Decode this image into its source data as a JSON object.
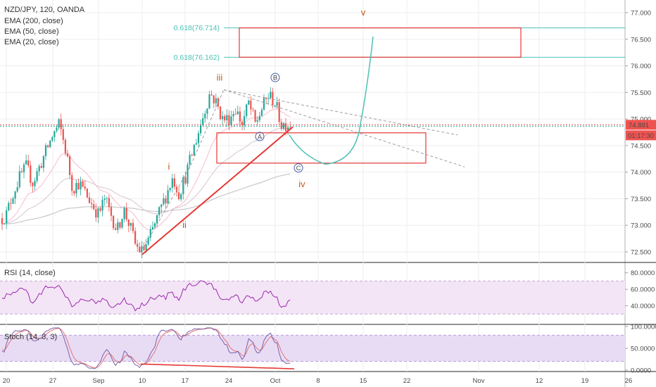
{
  "chart_data": {
    "type": "candlestick",
    "title": "NZD/JPY, 120, OANDA",
    "indicators": [
      "EMA (200, close)",
      "EMA (50, close)",
      "EMA (20, close)"
    ],
    "x_labels": [
      "20",
      "27",
      "Sep",
      "10",
      "17",
      "24",
      "Oct",
      "8",
      "15",
      "22",
      "Nov",
      "12",
      "19",
      "26"
    ],
    "price_ticks": [
      "77.000",
      "76.500",
      "76.000",
      "75.500",
      "75.000",
      "74.500",
      "74.000",
      "73.500",
      "73.000",
      "72.500"
    ],
    "price_range": [
      72.3,
      77.2
    ],
    "last_price": "74.891",
    "countdown": "01:17:30",
    "fib_levels": [
      {
        "label": "0.618(76.714)",
        "value": 76.714
      },
      {
        "label": "0.618(76.162)",
        "value": 76.162
      }
    ],
    "wave_labels": [
      "i",
      "ii",
      "iii",
      "iv",
      "v",
      "A",
      "B",
      "C"
    ],
    "series_path": [
      {
        "date": "Aug 19",
        "value": 73.1
      },
      {
        "date": "Aug 20",
        "value": 73.2
      },
      {
        "date": "Aug 21",
        "value": 73.6
      },
      {
        "date": "Aug 22",
        "value": 73.9
      },
      {
        "date": "Aug 23",
        "value": 74.1
      },
      {
        "date": "Aug 24",
        "value": 73.8
      },
      {
        "date": "Aug 26",
        "value": 74.4
      },
      {
        "date": "Aug 27",
        "value": 74.7
      },
      {
        "date": "Aug 28",
        "value": 74.9
      },
      {
        "date": "Aug 29",
        "value": 74.4
      },
      {
        "date": "Aug 30",
        "value": 73.7
      },
      {
        "date": "Aug 31",
        "value": 73.8
      },
      {
        "date": "Sep 2",
        "value": 73.4
      },
      {
        "date": "Sep 3",
        "value": 73.2
      },
      {
        "date": "Sep 4",
        "value": 73.5
      },
      {
        "date": "Sep 5",
        "value": 73.2
      },
      {
        "date": "Sep 6",
        "value": 72.9
      },
      {
        "date": "Sep 7",
        "value": 73.3
      },
      {
        "date": "Sep 8",
        "value": 73.0
      },
      {
        "date": "Sep 9",
        "value": 72.6
      },
      {
        "date": "Sep 10",
        "value": 72.5
      },
      {
        "date": "Sep 11",
        "value": 72.7
      },
      {
        "date": "Sep 12",
        "value": 73.0
      },
      {
        "date": "Sep 13",
        "value": 73.3
      },
      {
        "date": "Sep 14",
        "value": 73.6
      },
      {
        "date": "Sep 15",
        "value": 73.9
      },
      {
        "date": "Sep 16",
        "value": 73.6
      },
      {
        "date": "Sep 17",
        "value": 73.9
      },
      {
        "date": "Sep 18",
        "value": 74.3
      },
      {
        "date": "Sep 19",
        "value": 74.7
      },
      {
        "date": "Sep 20",
        "value": 75.1
      },
      {
        "date": "Sep 21",
        "value": 75.5
      },
      {
        "date": "Sep 22",
        "value": 75.3
      },
      {
        "date": "Sep 23",
        "value": 75.0
      },
      {
        "date": "Sep 24",
        "value": 75.0
      },
      {
        "date": "Sep 25",
        "value": 75.2
      },
      {
        "date": "Sep 26",
        "value": 74.9
      },
      {
        "date": "Sep 27",
        "value": 75.3
      },
      {
        "date": "Sep 28",
        "value": 74.9
      },
      {
        "date": "Sep 29",
        "value": 75.2
      },
      {
        "date": "Sep 30",
        "value": 75.45
      },
      {
        "date": "Oct 1",
        "value": 75.3
      },
      {
        "date": "Oct 2",
        "value": 74.9
      }
    ],
    "rsi": {
      "label": "RSI (14, close)",
      "ticks": [
        "80.0000",
        "60.0000",
        "40.0000"
      ],
      "range": [
        20,
        90
      ],
      "band": [
        30,
        70
      ]
    },
    "stoch": {
      "label": "Stoch (14, 3, 3)",
      "ticks": [
        "100.0000",
        "50.0000",
        "0.0000"
      ],
      "range": [
        0,
        100
      ],
      "band": [
        20,
        80
      ]
    },
    "colors": {
      "bull": "#26a69a",
      "bear": "#ef5350",
      "fib": "#4dc0b5",
      "box": "#e53935",
      "wave_label": "#c25a1b",
      "abc_label": "#3f5fa8",
      "price_badge": "#ef5350",
      "rsi_line": "#9c27b0",
      "rsi_bg": "#f3e5f5",
      "stoch_k": "#7b61a8",
      "stoch_d": "#e57373"
    }
  }
}
